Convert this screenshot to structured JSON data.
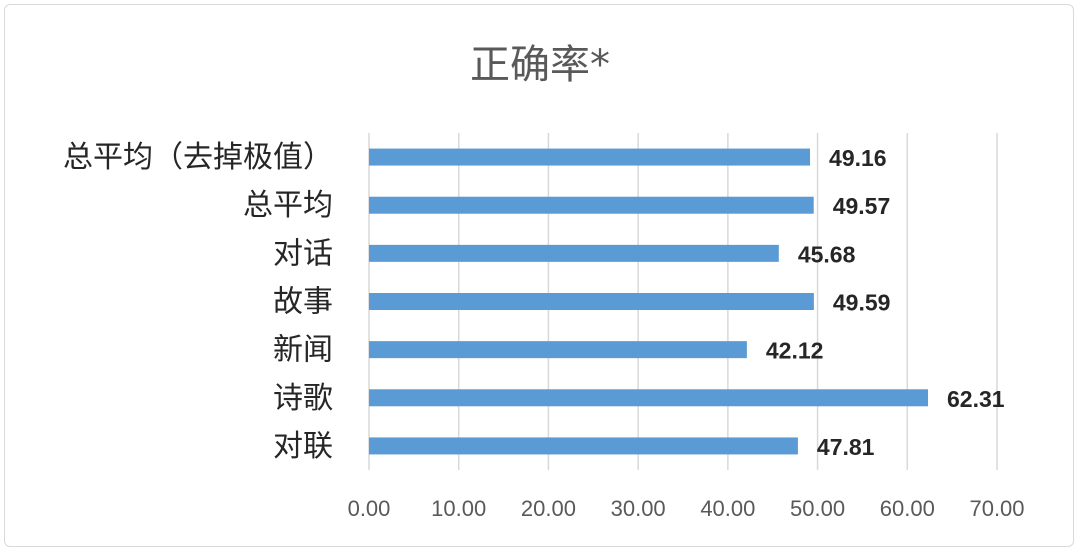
{
  "chart_data": {
    "type": "bar",
    "orientation": "horizontal",
    "title": "正确率*",
    "categories": [
      "总平均（去掉极值）",
      "总平均",
      "对话",
      "故事",
      "新闻",
      "诗歌",
      "对联"
    ],
    "values": [
      49.16,
      49.57,
      45.68,
      49.59,
      42.12,
      62.31,
      47.81
    ],
    "data_labels": [
      "49.16",
      "49.57",
      "45.68",
      "49.59",
      "42.12",
      "62.31",
      "47.81"
    ],
    "xlim": [
      0,
      70
    ],
    "x_ticks": [
      "0.00",
      "10.00",
      "20.00",
      "30.00",
      "40.00",
      "50.00",
      "60.00",
      "70.00"
    ],
    "xlabel": "",
    "ylabel": "",
    "grid": true,
    "legend": "none",
    "bar_color": "#5b9bd5"
  }
}
